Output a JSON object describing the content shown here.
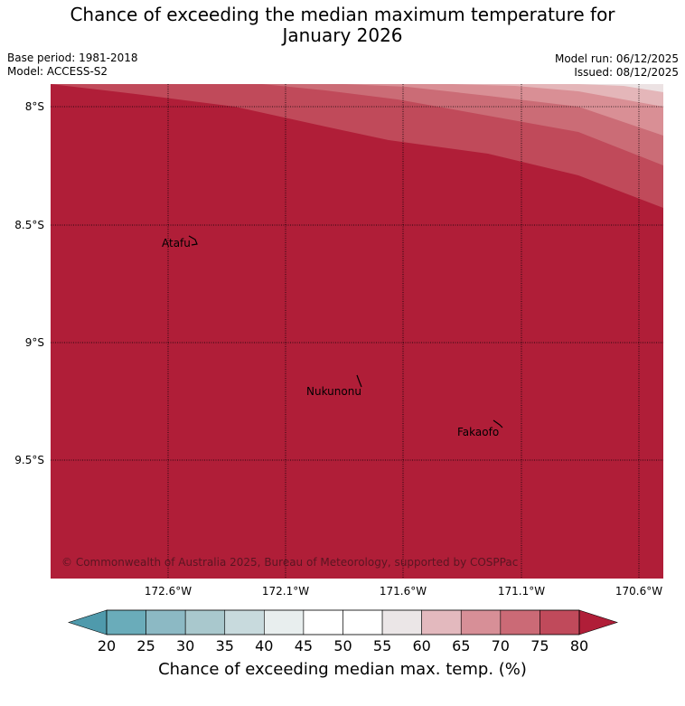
{
  "header": {
    "title_line1": "Chance of exceeding the median maximum temperature for",
    "title_line2": "January 2026",
    "base_period": "Base period: 1981-2018",
    "model": "Model: ACCESS-S2",
    "model_run": "Model run: 06/12/2025",
    "issued": "Issued: 08/12/2025"
  },
  "map": {
    "latitude_labels": [
      "8°S",
      "8.5°S",
      "9°S",
      "9.5°S"
    ],
    "longitude_labels": [
      "172.6°W",
      "172.1°W",
      "171.6°W",
      "171.1°W",
      "170.6°W"
    ],
    "places": [
      {
        "name": "Atafu"
      },
      {
        "name": "Nukunonu"
      },
      {
        "name": "Fakaofo"
      }
    ],
    "copyright": "© Commonwealth of Australia 2025, Bureau of Meteorology, supported by COSPPac",
    "colors": {
      "background_fill": "#b01e38",
      "band_75_80": "#c04a5a",
      "band_70_75": "#cb6c76",
      "band_65_70": "#d98f95",
      "band_60_65": "#e4b6b9"
    }
  },
  "colorbar": {
    "label": "Chance of exceeding median max. temp. (%)",
    "ticks": [
      "20",
      "25",
      "30",
      "35",
      "40",
      "45",
      "50",
      "55",
      "60",
      "65",
      "70",
      "75",
      "80"
    ],
    "segment_colors": [
      "#6aacba",
      "#8cb9c4",
      "#a9c8cd",
      "#c8dadd",
      "#e8eeee",
      "#ffffff",
      "#ffffff",
      "#ebe6e7",
      "#e3b9be",
      "#d78f97",
      "#cb6a76",
      "#c04a5b"
    ],
    "under_color": "#4f9aac",
    "over_color": "#b01e38"
  }
}
